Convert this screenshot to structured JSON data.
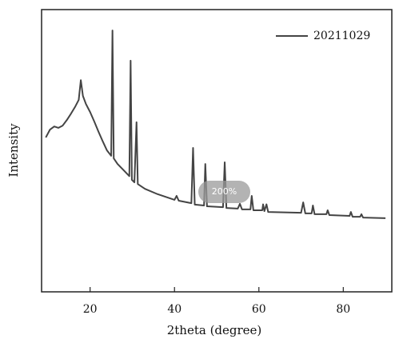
{
  "chart_data": {
    "type": "line",
    "x_label": "2theta (degree)",
    "y_label": "Intensity",
    "x": [
      9.5,
      10.5,
      11.5,
      12.5,
      13.5,
      14.5,
      15.5,
      16.5,
      17.3,
      17.8,
      18.3,
      19,
      20,
      21,
      22,
      23,
      24,
      25,
      25.3,
      25.6,
      26.5,
      28,
      29.3,
      29.6,
      29.9,
      30.5,
      31,
      31.3,
      33,
      36,
      40,
      40.5,
      41,
      44,
      44.4,
      44.8,
      47,
      47.3,
      47.7,
      51.5,
      51.9,
      52.3,
      55,
      55.5,
      56,
      58,
      58.3,
      58.7,
      60.8,
      61,
      61.3,
      61.8,
      62.2,
      70,
      70.5,
      71,
      72.5,
      72.8,
      73.2,
      76,
      76.3,
      76.7,
      81.5,
      81.8,
      82.2,
      84,
      84.3,
      84.7,
      90
    ],
    "series": [
      {
        "name": "20211029",
        "color": "#444444",
        "values": [
          54.7,
          57.5,
          58.6,
          58.1,
          58.9,
          60.9,
          63.2,
          65.7,
          68,
          75,
          69.4,
          66.6,
          63.7,
          60.3,
          56.7,
          53.3,
          50.1,
          48.2,
          92.6,
          47.3,
          45.3,
          43,
          41,
          81.9,
          39.7,
          38.8,
          60.1,
          38.2,
          36.5,
          34.6,
          32.6,
          34,
          32.3,
          31.4,
          51,
          30.9,
          30.6,
          45.3,
          30.3,
          30,
          45.9,
          29.7,
          29.5,
          31.2,
          29.2,
          29.2,
          34,
          28.9,
          28.9,
          31,
          28.6,
          31,
          28.3,
          28,
          31.7,
          27.8,
          27.8,
          30.6,
          27.5,
          27.5,
          28.9,
          27.2,
          26.9,
          28.3,
          26.6,
          26.6,
          27.5,
          26.3,
          26.1
        ]
      }
    ],
    "xlim": [
      8.5,
      91.5
    ],
    "xticks": [
      20,
      40,
      60,
      80
    ],
    "ylim": [
      0,
      100
    ],
    "legend": "upper right"
  },
  "zoom_badge": "200%"
}
